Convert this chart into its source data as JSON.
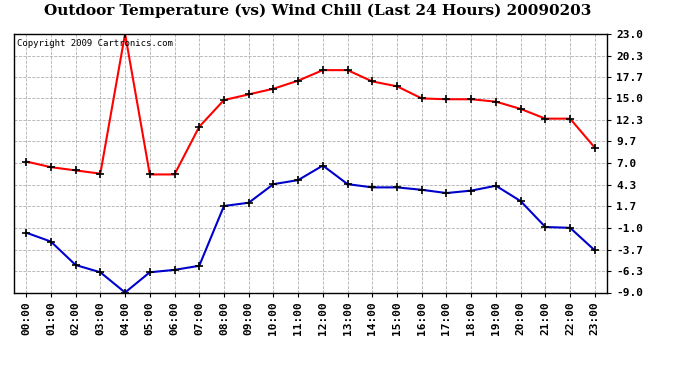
{
  "title": "Outdoor Temperature (vs) Wind Chill (Last 24 Hours) 20090203",
  "copyright_text": "Copyright 2009 Cartronics.com",
  "hours": [
    "00:00",
    "01:00",
    "02:00",
    "03:00",
    "04:00",
    "05:00",
    "06:00",
    "07:00",
    "08:00",
    "09:00",
    "10:00",
    "11:00",
    "12:00",
    "13:00",
    "14:00",
    "15:00",
    "16:00",
    "17:00",
    "18:00",
    "19:00",
    "20:00",
    "21:00",
    "22:00",
    "23:00"
  ],
  "temp": [
    7.2,
    6.5,
    6.1,
    5.7,
    23.0,
    5.6,
    5.6,
    11.5,
    14.8,
    15.5,
    16.2,
    17.2,
    18.5,
    18.5,
    17.1,
    16.5,
    15.0,
    14.9,
    14.9,
    14.6,
    13.7,
    12.5,
    12.5,
    8.9
  ],
  "wind_chill": [
    -1.6,
    -2.7,
    -5.6,
    -6.5,
    -9.0,
    -6.5,
    -6.2,
    -5.7,
    1.7,
    2.1,
    4.4,
    4.9,
    6.7,
    4.4,
    4.0,
    4.0,
    3.7,
    3.3,
    3.6,
    4.2,
    2.3,
    -0.9,
    -1.0,
    -3.8
  ],
  "ylim": [
    -9.0,
    23.0
  ],
  "yticks": [
    23.0,
    20.3,
    17.7,
    15.0,
    12.3,
    9.7,
    7.0,
    4.3,
    1.7,
    -1.0,
    -3.7,
    -6.3,
    -9.0
  ],
  "temp_color": "#ff0000",
  "wind_chill_color": "#0000cc",
  "bg_color": "#ffffff",
  "grid_color": "#b0b0b0",
  "title_fontsize": 11,
  "copyright_fontsize": 6.5,
  "tick_fontsize": 8
}
